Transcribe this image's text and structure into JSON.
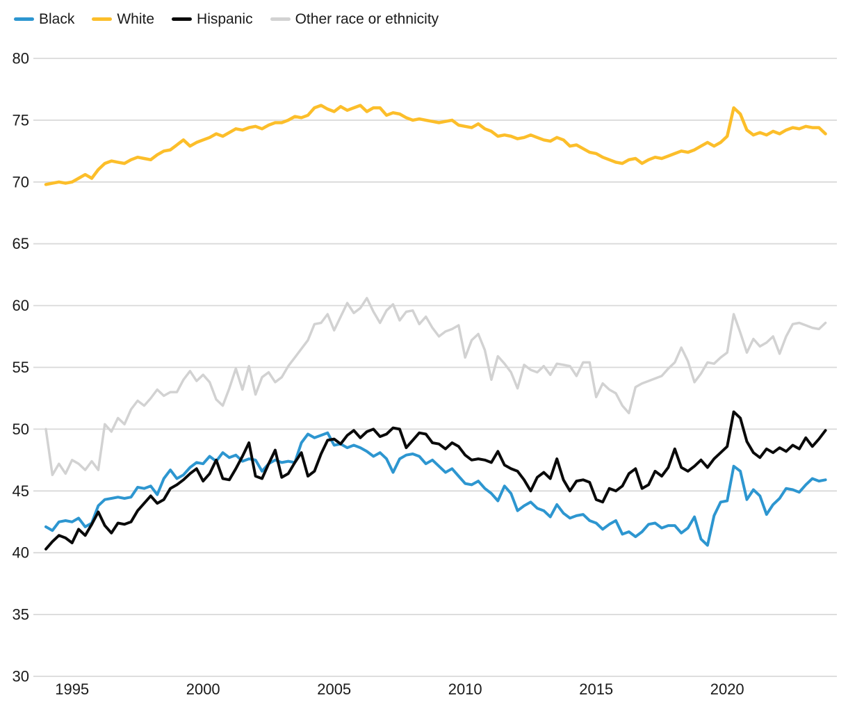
{
  "chart": {
    "legend": [
      {
        "label": "Black",
        "color": "#2d96d0"
      },
      {
        "label": "White",
        "color": "#fcbe2a"
      },
      {
        "label": "Hispanic",
        "color": "#0a0a0a"
      },
      {
        "label": "Other race or ethnicity",
        "color": "#d2d2d2"
      }
    ]
  },
  "chart_data": {
    "type": "line",
    "title": "",
    "xlabel": "",
    "ylabel": "",
    "x_start": 1994.0,
    "x_step": 0.25,
    "x_ticks": [
      1995,
      2000,
      2005,
      2010,
      2015,
      2020
    ],
    "y_ticks": [
      30,
      35,
      40,
      45,
      50,
      55,
      60,
      65,
      70,
      75,
      80
    ],
    "ylim": [
      30,
      80
    ],
    "xlim": [
      1994.0,
      2023.75
    ],
    "grid": "horizontal",
    "legend_position": "top-left",
    "series": [
      {
        "name": "Black",
        "color": "#2d96d0",
        "stroke_width": 4,
        "values": [
          42.1,
          41.8,
          42.5,
          42.6,
          42.5,
          42.8,
          42.1,
          42.4,
          43.8,
          44.3,
          44.4,
          44.5,
          44.4,
          44.5,
          45.3,
          45.2,
          45.4,
          44.7,
          46.0,
          46.7,
          46.0,
          46.3,
          46.9,
          47.3,
          47.2,
          47.8,
          47.4,
          48.1,
          47.7,
          47.9,
          47.4,
          47.6,
          47.5,
          46.6,
          47.2,
          47.5,
          47.3,
          47.4,
          47.3,
          48.9,
          49.6,
          49.3,
          49.5,
          49.7,
          48.7,
          48.8,
          48.5,
          48.7,
          48.5,
          48.2,
          47.8,
          48.1,
          47.6,
          46.5,
          47.6,
          47.9,
          48.0,
          47.8,
          47.2,
          47.5,
          47.0,
          46.5,
          46.8,
          46.2,
          45.6,
          45.5,
          45.8,
          45.2,
          44.8,
          44.2,
          45.4,
          44.8,
          43.4,
          43.8,
          44.1,
          43.6,
          43.4,
          42.9,
          43.9,
          43.2,
          42.8,
          43.0,
          43.1,
          42.6,
          42.4,
          41.9,
          42.3,
          42.6,
          41.5,
          41.7,
          41.3,
          41.7,
          42.3,
          42.4,
          42.0,
          42.2,
          42.2,
          41.6,
          42.0,
          42.9,
          41.1,
          40.6,
          43.0,
          44.1,
          44.2,
          47.0,
          46.6,
          44.3,
          45.1,
          44.6,
          43.1,
          43.9,
          44.4,
          45.2,
          45.1,
          44.9,
          45.5,
          46.0,
          45.8,
          45.9
        ]
      },
      {
        "name": "White",
        "color": "#fcbe2a",
        "stroke_width": 4.5,
        "values": [
          69.8,
          69.9,
          70.0,
          69.9,
          70.0,
          70.3,
          70.6,
          70.3,
          71.0,
          71.5,
          71.7,
          71.6,
          71.5,
          71.8,
          72.0,
          71.9,
          71.8,
          72.2,
          72.5,
          72.6,
          73.0,
          73.4,
          72.9,
          73.2,
          73.4,
          73.6,
          73.9,
          73.7,
          74.0,
          74.3,
          74.2,
          74.4,
          74.5,
          74.3,
          74.6,
          74.8,
          74.8,
          75.0,
          75.3,
          75.2,
          75.4,
          76.0,
          76.2,
          75.9,
          75.7,
          76.1,
          75.8,
          76.0,
          76.2,
          75.7,
          76.0,
          76.0,
          75.4,
          75.6,
          75.5,
          75.2,
          75.0,
          75.1,
          75.0,
          74.9,
          74.8,
          74.9,
          75.0,
          74.6,
          74.5,
          74.4,
          74.7,
          74.3,
          74.1,
          73.7,
          73.8,
          73.7,
          73.5,
          73.6,
          73.8,
          73.6,
          73.4,
          73.3,
          73.6,
          73.4,
          72.9,
          73.0,
          72.7,
          72.4,
          72.3,
          72.0,
          71.8,
          71.6,
          71.5,
          71.8,
          71.9,
          71.5,
          71.8,
          72.0,
          71.9,
          72.1,
          72.3,
          72.5,
          72.4,
          72.6,
          72.9,
          73.2,
          72.9,
          73.2,
          73.7,
          76.0,
          75.5,
          74.2,
          73.8,
          74.0,
          73.8,
          74.1,
          73.9,
          74.2,
          74.4,
          74.3,
          74.5,
          74.4,
          74.4,
          73.9
        ]
      },
      {
        "name": "Hispanic",
        "color": "#0a0a0a",
        "stroke_width": 4,
        "values": [
          40.3,
          40.9,
          41.4,
          41.2,
          40.8,
          41.9,
          41.4,
          42.3,
          43.3,
          42.2,
          41.6,
          42.4,
          42.3,
          42.5,
          43.4,
          44.0,
          44.6,
          44.0,
          44.3,
          45.2,
          45.5,
          45.9,
          46.4,
          46.8,
          45.8,
          46.4,
          47.5,
          46.0,
          45.9,
          46.8,
          47.8,
          48.9,
          46.2,
          46.0,
          47.2,
          48.3,
          46.1,
          46.4,
          47.3,
          48.1,
          46.2,
          46.6,
          48.0,
          49.1,
          49.2,
          48.8,
          49.5,
          49.9,
          49.3,
          49.8,
          50.0,
          49.4,
          49.6,
          50.1,
          50.0,
          48.5,
          49.1,
          49.7,
          49.6,
          48.9,
          48.8,
          48.4,
          48.9,
          48.6,
          47.9,
          47.5,
          47.6,
          47.5,
          47.3,
          48.2,
          47.1,
          46.8,
          46.6,
          45.9,
          45.0,
          46.1,
          46.5,
          46.0,
          47.6,
          45.9,
          45.0,
          45.8,
          45.9,
          45.7,
          44.3,
          44.1,
          45.2,
          45.0,
          45.4,
          46.4,
          46.8,
          45.2,
          45.5,
          46.6,
          46.2,
          46.9,
          48.4,
          46.9,
          46.6,
          47.0,
          47.5,
          46.9,
          47.6,
          48.1,
          48.6,
          51.4,
          50.9,
          49.0,
          48.1,
          47.7,
          48.4,
          48.1,
          48.5,
          48.2,
          48.7,
          48.4,
          49.3,
          48.6,
          49.2,
          49.9
        ]
      },
      {
        "name": "Other race or ethnicity",
        "color": "#d2d2d2",
        "stroke_width": 3.5,
        "values": [
          50.0,
          46.3,
          47.2,
          46.4,
          47.5,
          47.2,
          46.7,
          47.4,
          46.7,
          50.4,
          49.8,
          50.9,
          50.4,
          51.6,
          52.3,
          51.9,
          52.5,
          53.2,
          52.7,
          53.0,
          53.0,
          54.0,
          54.7,
          53.9,
          54.4,
          53.8,
          52.4,
          51.9,
          53.3,
          54.9,
          53.2,
          55.1,
          52.8,
          54.2,
          54.6,
          53.8,
          54.2,
          55.1,
          55.8,
          56.5,
          57.2,
          58.5,
          58.6,
          59.3,
          58.0,
          59.1,
          60.2,
          59.4,
          59.8,
          60.6,
          59.5,
          58.6,
          59.6,
          60.1,
          58.8,
          59.5,
          59.6,
          58.5,
          59.1,
          58.2,
          57.5,
          57.9,
          58.1,
          58.4,
          55.8,
          57.2,
          57.7,
          56.4,
          54.0,
          55.9,
          55.3,
          54.6,
          53.3,
          55.2,
          54.8,
          54.6,
          55.1,
          54.4,
          55.3,
          55.2,
          55.1,
          54.3,
          55.4,
          55.4,
          52.6,
          53.7,
          53.2,
          52.9,
          51.9,
          51.3,
          53.4,
          53.7,
          53.9,
          54.1,
          54.3,
          54.9,
          55.4,
          56.6,
          55.5,
          53.8,
          54.5,
          55.4,
          55.3,
          55.8,
          56.2,
          59.3,
          57.8,
          56.2,
          57.3,
          56.7,
          57.0,
          57.5,
          56.1,
          57.5,
          58.5,
          58.6,
          58.4,
          58.2,
          58.1,
          58.6
        ]
      }
    ]
  }
}
